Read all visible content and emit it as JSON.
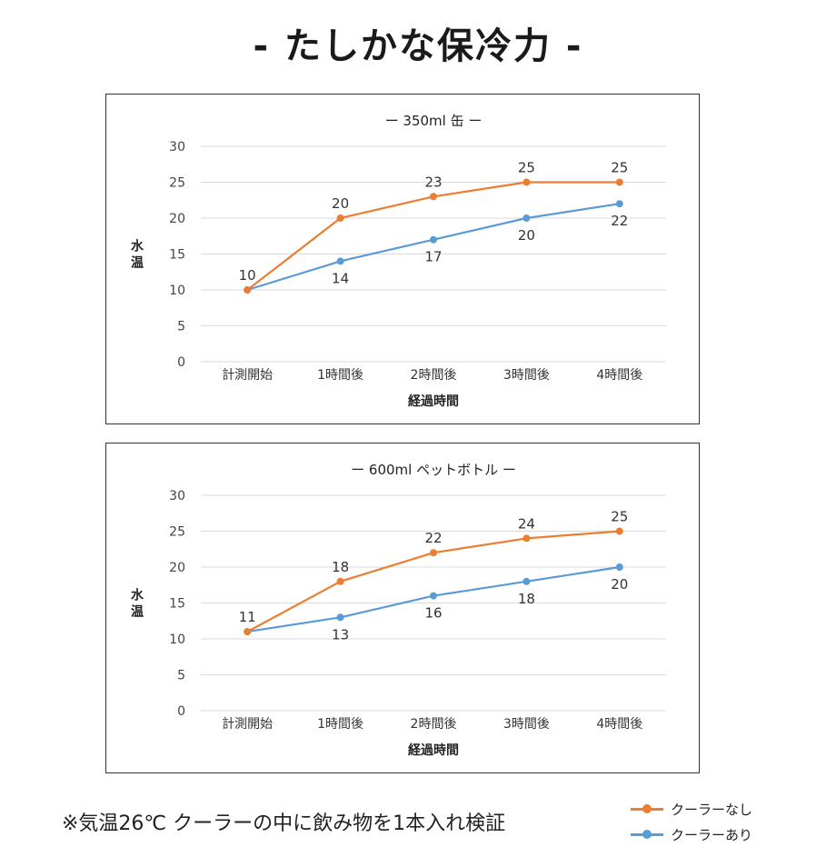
{
  "page": {
    "title": "- たしかな保冷力 -",
    "footnote": "※気温26℃ クーラーの中に飲み物を1本入れ検証"
  },
  "legend": [
    {
      "label": "クーラーなし",
      "color": "#ED7D31"
    },
    {
      "label": "クーラーあり",
      "color": "#5B9BD5"
    }
  ],
  "chart_data": [
    {
      "type": "line",
      "title": "ー 350ml 缶 ー",
      "xlabel": "経過時間",
      "ylabel": "水温",
      "categories": [
        "計測開始",
        "1時間後",
        "2時間後",
        "3時間後",
        "4時間後"
      ],
      "ylim": [
        0,
        30
      ],
      "yticks": [
        0,
        5,
        10,
        15,
        20,
        25,
        30
      ],
      "grid": true,
      "series": [
        {
          "name": "クーラーなし",
          "color": "#ED7D31",
          "values": [
            10,
            20,
            23,
            25,
            25
          ],
          "label_position": "above"
        },
        {
          "name": "クーラーあり",
          "color": "#5B9BD5",
          "values": [
            10,
            14,
            17,
            20,
            22
          ],
          "label_position": "below"
        }
      ]
    },
    {
      "type": "line",
      "title": "ー 600ml ペットボトル ー",
      "xlabel": "経過時間",
      "ylabel": "水温",
      "categories": [
        "計測開始",
        "1時間後",
        "2時間後",
        "3時間後",
        "4時間後"
      ],
      "ylim": [
        0,
        30
      ],
      "yticks": [
        0,
        5,
        10,
        15,
        20,
        25,
        30
      ],
      "grid": true,
      "series": [
        {
          "name": "クーラーなし",
          "color": "#ED7D31",
          "values": [
            11,
            18,
            22,
            24,
            25
          ],
          "label_position": "above"
        },
        {
          "name": "クーラーあり",
          "color": "#5B9BD5",
          "values": [
            11,
            13,
            16,
            18,
            20
          ],
          "label_position": "below"
        }
      ]
    }
  ]
}
